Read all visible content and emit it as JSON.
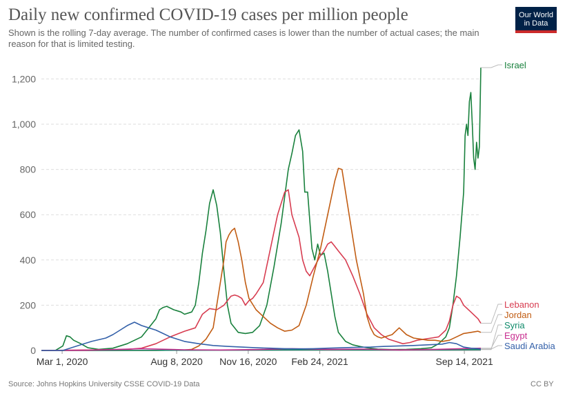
{
  "header": {
    "title": "Daily new confirmed COVID-19 cases per million people",
    "subtitle": "Shown is the rolling 7-day average. The number of confirmed cases is lower than the number of actual cases; the main reason for that is limited testing.",
    "logo_line1": "Our World",
    "logo_line2": "in Data"
  },
  "footer": {
    "source": "Source: Johns Hopkins University CSSE COVID-19 Data",
    "license": "CC BY"
  },
  "chart_data": {
    "type": "line",
    "title": "Daily new confirmed COVID-19 cases per million people",
    "xlabel": "",
    "ylabel": "",
    "ylim": [
      0,
      1250
    ],
    "x_unit": "days since Feb 1, 2020",
    "x_range": [
      0,
      614
    ],
    "x_ticks": [
      {
        "label": "Mar 1, 2020",
        "day": 29
      },
      {
        "label": "Aug 8, 2020",
        "day": 189
      },
      {
        "label": "Nov 16, 2020",
        "day": 289
      },
      {
        "label": "Feb 24, 2021",
        "day": 389
      },
      {
        "label": "Sep 14, 2021",
        "day": 591
      }
    ],
    "y_ticks": [
      {
        "label": "0",
        "value": 0
      },
      {
        "label": "200",
        "value": 200
      },
      {
        "label": "400",
        "value": 400
      },
      {
        "label": "600",
        "value": 600
      },
      {
        "label": "800",
        "value": 800
      },
      {
        "label": "1,000",
        "value": 1000
      },
      {
        "label": "1,200",
        "value": 1200
      }
    ],
    "grid": true,
    "legend_placement": "right, at line ends",
    "series": [
      {
        "name": "Israel",
        "color": "#18803c",
        "x": [
          0,
          20,
          30,
          35,
          40,
          45,
          55,
          65,
          80,
          100,
          120,
          140,
          150,
          160,
          165,
          170,
          175,
          185,
          195,
          200,
          210,
          215,
          220,
          225,
          230,
          235,
          240,
          245,
          250,
          255,
          260,
          265,
          275,
          285,
          295,
          305,
          315,
          325,
          335,
          345,
          350,
          355,
          360,
          365,
          368,
          372,
          378,
          382,
          386,
          390,
          395,
          400,
          405,
          410,
          415,
          425,
          435,
          445,
          455,
          470,
          490,
          510,
          530,
          545,
          555,
          565,
          570,
          575,
          580,
          585,
          590,
          592,
          594,
          596,
          598,
          600,
          602,
          604,
          606,
          608,
          610,
          612,
          614
        ],
        "values": [
          0,
          1,
          20,
          65,
          60,
          45,
          30,
          12,
          5,
          10,
          30,
          60,
          100,
          140,
          180,
          190,
          195,
          180,
          170,
          160,
          170,
          200,
          300,
          430,
          530,
          650,
          710,
          640,
          520,
          350,
          200,
          120,
          80,
          75,
          80,
          110,
          200,
          370,
          560,
          800,
          870,
          950,
          975,
          880,
          700,
          700,
          450,
          400,
          470,
          420,
          430,
          350,
          250,
          150,
          80,
          40,
          25,
          18,
          12,
          6,
          4,
          5,
          8,
          12,
          30,
          60,
          100,
          200,
          330,
          500,
          700,
          950,
          1000,
          950,
          1100,
          1140,
          1000,
          850,
          800,
          920,
          850,
          900,
          1250
        ]
      },
      {
        "name": "Lebanon",
        "color": "#d73c50",
        "x": [
          0,
          30,
          60,
          90,
          120,
          140,
          160,
          180,
          200,
          215,
          225,
          235,
          245,
          255,
          260,
          265,
          270,
          275,
          280,
          285,
          290,
          295,
          300,
          310,
          320,
          330,
          340,
          345,
          350,
          355,
          360,
          365,
          370,
          375,
          380,
          390,
          395,
          400,
          405,
          410,
          415,
          420,
          425,
          435,
          445,
          455,
          465,
          475,
          485,
          495,
          505,
          515,
          525,
          535,
          545,
          555,
          565,
          570,
          575,
          580,
          585,
          590,
          600,
          610,
          614
        ],
        "values": [
          0,
          1,
          2,
          3,
          5,
          10,
          30,
          60,
          85,
          100,
          160,
          185,
          180,
          200,
          220,
          240,
          245,
          240,
          230,
          200,
          220,
          230,
          250,
          300,
          450,
          600,
          700,
          710,
          600,
          550,
          500,
          400,
          350,
          330,
          360,
          420,
          440,
          470,
          480,
          460,
          440,
          420,
          400,
          330,
          250,
          160,
          100,
          70,
          50,
          40,
          30,
          35,
          45,
          50,
          55,
          60,
          90,
          130,
          200,
          240,
          230,
          200,
          170,
          140,
          120
        ]
      },
      {
        "name": "Jordan",
        "color": "#c15c12",
        "x": [
          0,
          80,
          160,
          200,
          210,
          220,
          230,
          240,
          245,
          250,
          255,
          258,
          262,
          266,
          270,
          275,
          280,
          285,
          290,
          300,
          310,
          320,
          330,
          340,
          350,
          360,
          370,
          380,
          390,
          400,
          410,
          415,
          420,
          425,
          430,
          440,
          450,
          455,
          460,
          465,
          470,
          475,
          480,
          490,
          500,
          510,
          520,
          530,
          540,
          550,
          560,
          570,
          580,
          590,
          600,
          610,
          614
        ],
        "values": [
          0,
          0,
          0,
          2,
          5,
          20,
          50,
          100,
          200,
          300,
          400,
          480,
          510,
          530,
          540,
          480,
          400,
          300,
          230,
          180,
          150,
          120,
          100,
          85,
          90,
          110,
          200,
          330,
          450,
          600,
          750,
          805,
          800,
          700,
          600,
          400,
          250,
          150,
          100,
          70,
          60,
          55,
          60,
          70,
          100,
          70,
          55,
          50,
          45,
          45,
          40,
          45,
          60,
          75,
          80,
          85,
          80
        ]
      },
      {
        "name": "Syria",
        "color": "#0f8a6a",
        "x": [
          0,
          100,
          200,
          300,
          400,
          500,
          614
        ],
        "values": [
          0,
          0,
          1,
          2,
          3,
          2,
          4
        ]
      },
      {
        "name": "Egypt",
        "color": "#c72d8f",
        "x": [
          0,
          60,
          100,
          140,
          200,
          250,
          300,
          350,
          400,
          450,
          500,
          550,
          614
        ],
        "values": [
          0,
          1,
          4,
          8,
          3,
          2,
          4,
          8,
          5,
          6,
          2,
          5,
          10
        ]
      },
      {
        "name": "Saudi Arabia",
        "color": "#3360a9",
        "x": [
          0,
          30,
          50,
          70,
          90,
          100,
          110,
          120,
          130,
          140,
          150,
          160,
          170,
          180,
          190,
          200,
          220,
          240,
          260,
          280,
          300,
          320,
          340,
          360,
          380,
          400,
          420,
          440,
          460,
          480,
          500,
          520,
          540,
          560,
          570,
          580,
          590,
          600,
          610,
          614
        ],
        "values": [
          0,
          0,
          20,
          40,
          55,
          70,
          90,
          110,
          125,
          110,
          100,
          90,
          75,
          60,
          50,
          40,
          30,
          22,
          18,
          15,
          12,
          10,
          8,
          7,
          8,
          10,
          12,
          14,
          15,
          18,
          20,
          22,
          25,
          28,
          35,
          30,
          15,
          10,
          8,
          6
        ]
      }
    ]
  }
}
